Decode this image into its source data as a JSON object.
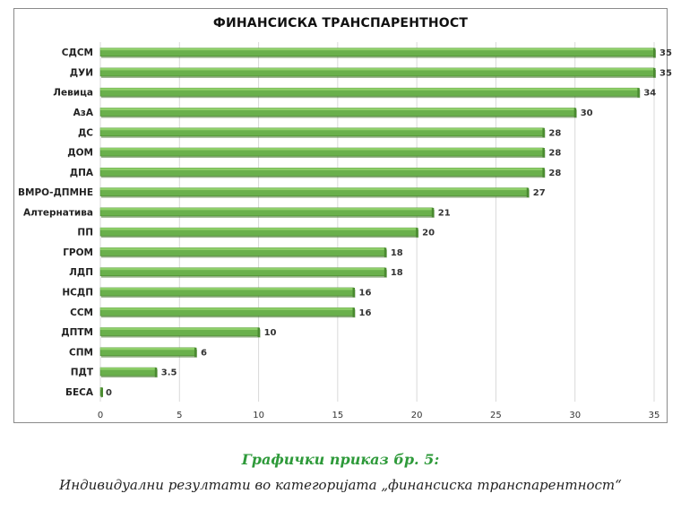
{
  "chart_data": {
    "type": "bar",
    "orientation": "horizontal",
    "title": "ФИНАНСИСКА ТРАНСПАРЕНТНОСТ",
    "categories": [
      "СДСМ",
      "ДУИ",
      "Левица",
      "АзА",
      "ДС",
      "ДОМ",
      "ДПА",
      "ВМРО-ДПМНЕ",
      "Алтернатива",
      "ПП",
      "ГРОМ",
      "ЛДП",
      "НСДП",
      "ССМ",
      "ДПТМ",
      "СПМ",
      "ПДТ",
      "БЕСА"
    ],
    "values": [
      35,
      35,
      34,
      30,
      28,
      28,
      28,
      27,
      21,
      20,
      18,
      18,
      16,
      16,
      10,
      6,
      3.5,
      0
    ],
    "value_labels": [
      "35",
      "35",
      "34",
      "30",
      "28",
      "28",
      "28",
      "27",
      "21",
      "20",
      "18",
      "18",
      "16",
      "16",
      "10",
      "6",
      "3.5",
      "0"
    ],
    "xlim": [
      0,
      35
    ],
    "xticks": [
      "0",
      "5",
      "10",
      "15",
      "20",
      "25",
      "30",
      "35"
    ],
    "grid": true,
    "bar_color": "#6ab04c",
    "bar_top_color": "#8fcf6a",
    "bar_edge_color": "#4a8a30"
  },
  "caption": {
    "title": "Графички приказ бр. 5:",
    "subtitle": "Индивидуални резултати во категоријата „финансиска транспарентност“"
  }
}
